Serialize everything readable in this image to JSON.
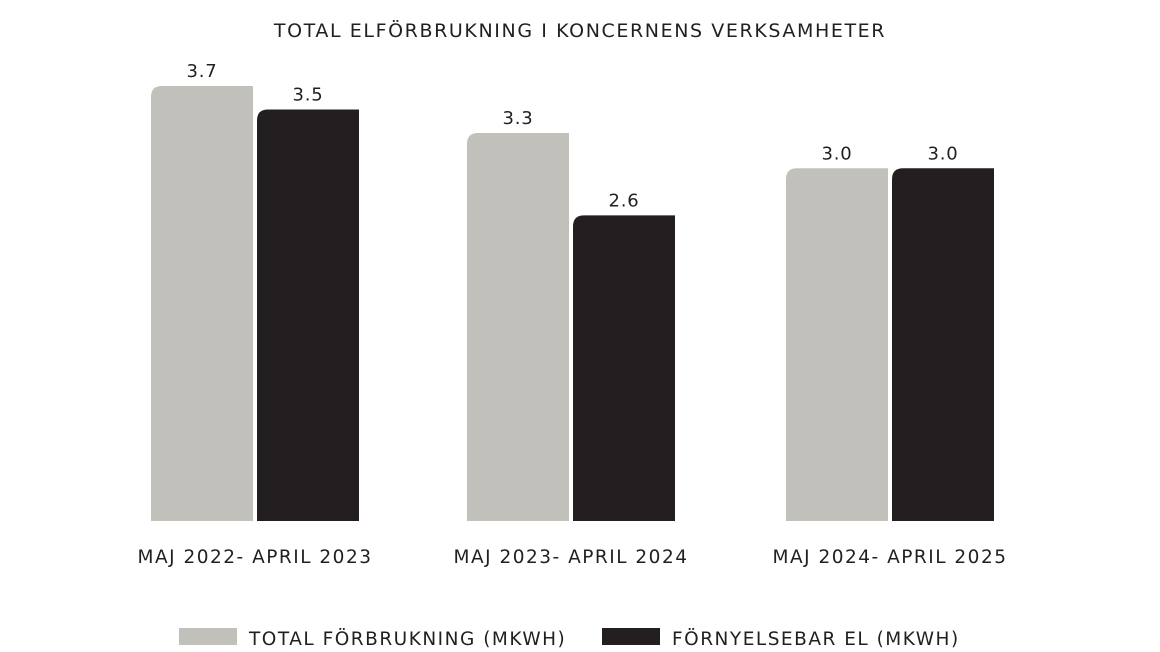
{
  "chart_data": {
    "type": "bar",
    "title": "TOTAL ELFÖRBRUKNING I KONCERNENS VERKSAMHETER",
    "categories": [
      "MAJ 2022- APRIL 2023",
      "MAJ 2023- APRIL 2024",
      "MAJ 2024- APRIL 2025"
    ],
    "series": [
      {
        "name": "TOTAL FÖRBRUKNING (MKWH)",
        "values": [
          3.7,
          3.3,
          3.0
        ],
        "labels": [
          "3.7",
          "3.3",
          "3.0"
        ],
        "color": "#c1c0bb"
      },
      {
        "name": "FÖRNYELSEBAR EL (MKWH)",
        "values": [
          3.5,
          2.6,
          3.0
        ],
        "labels": [
          "3.5",
          "2.6",
          "3.0"
        ],
        "color": "#231f20"
      }
    ],
    "ylim": [
      0,
      3.7
    ],
    "grid": false,
    "legend": "bottom"
  }
}
